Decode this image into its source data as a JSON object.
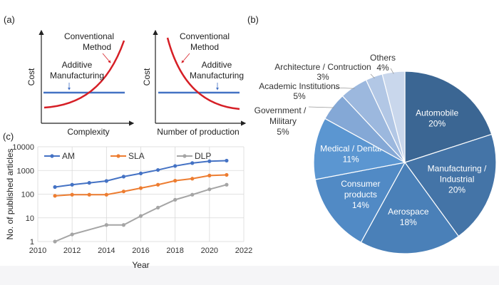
{
  "panel_labels": {
    "a": "(a)",
    "b": "(b)",
    "c": "(c)"
  },
  "panel_a": {
    "left": {
      "ylabel": "Cost",
      "xlabel": "Complexity",
      "conventional_label": [
        "Conventional",
        "Method"
      ],
      "additive_label": [
        "Additive",
        "Manufacturing"
      ]
    },
    "right": {
      "ylabel": "Cost",
      "xlabel": "Number of production",
      "conventional_label": [
        "Conventional",
        "Method"
      ],
      "additive_label": [
        "Additive",
        "Manufacturing"
      ]
    },
    "colors": {
      "conventional": "#d61f26",
      "additive": "#4472c4"
    }
  },
  "chart_data": [
    {
      "type": "line",
      "panel": "c",
      "title": "",
      "xlabel": "Year",
      "ylabel": "No. of published articles",
      "xlim": [
        2010,
        2022
      ],
      "ylim": [
        1,
        10000
      ],
      "y_scale": "log",
      "grid": true,
      "legend_position": "top-left",
      "x_ticks": [
        "2010",
        "2012",
        "2014",
        "2016",
        "2018",
        "2020",
        "2022"
      ],
      "y_ticks": [
        "1",
        "10",
        "100",
        "1000",
        "10000"
      ],
      "x": [
        2011,
        2012,
        2013,
        2014,
        2015,
        2016,
        2017,
        2018,
        2019,
        2020,
        2021
      ],
      "series": [
        {
          "name": "AM",
          "color": "#4472c4",
          "values": [
            200,
            250,
            300,
            360,
            550,
            750,
            1050,
            1550,
            2050,
            2450,
            2600
          ]
        },
        {
          "name": "SLA",
          "color": "#ed7d31",
          "values": [
            85,
            95,
            95,
            95,
            130,
            180,
            250,
            370,
            450,
            610,
            650
          ]
        },
        {
          "name": "DLP",
          "color": "#a5a5a5",
          "values": [
            1,
            2,
            null,
            5,
            5,
            12,
            27,
            58,
            95,
            160,
            250
          ]
        }
      ]
    },
    {
      "type": "pie",
      "panel": "b",
      "title": "",
      "start": "top, clockwise",
      "slices": [
        {
          "label": [
            "Automobile"
          ],
          "value": 20,
          "pct": "20%",
          "color": "#3b6693"
        },
        {
          "label": [
            "Manufacturing /",
            "Industrial"
          ],
          "value": 20,
          "pct": "20%",
          "color": "#4474a7"
        },
        {
          "label": [
            "Aerospace"
          ],
          "value": 18,
          "pct": "18%",
          "color": "#4a80b8"
        },
        {
          "label": [
            "Consumer",
            "products"
          ],
          "value": 14,
          "pct": "14%",
          "color": "#518ac5"
        },
        {
          "label": [
            "Medical / Dental"
          ],
          "value": 11,
          "pct": "11%",
          "color": "#5b96d1"
        },
        {
          "label": [
            "Government /",
            "Military"
          ],
          "value": 5,
          "pct": "5%",
          "color": "#84a8d6"
        },
        {
          "label": [
            "Academic Institutions"
          ],
          "value": 5,
          "pct": "5%",
          "color": "#9cb8de"
        },
        {
          "label": [
            "Architecture / Contruction"
          ],
          "value": 3,
          "pct": "3%",
          "color": "#b2c7e5"
        },
        {
          "label": [
            "Others"
          ],
          "value": 4,
          "pct": "4%",
          "color": "#c9d7ec"
        }
      ]
    }
  ]
}
